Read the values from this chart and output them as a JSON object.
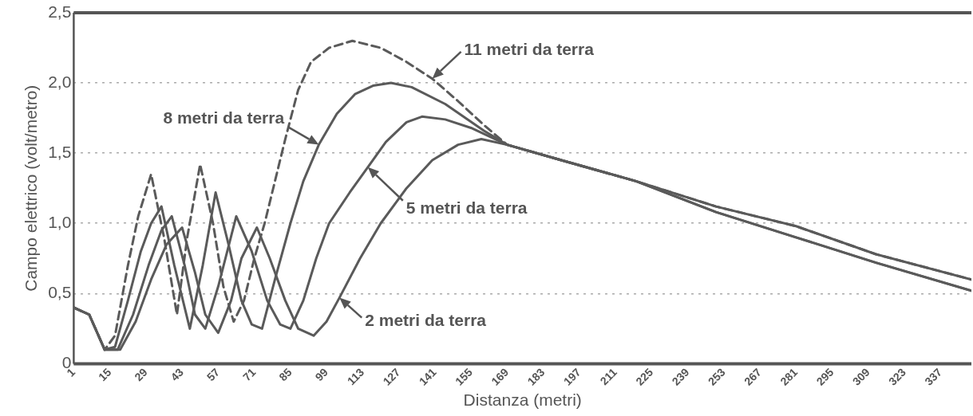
{
  "chart_data": {
    "type": "line",
    "xlabel": "Distanza (metri)",
    "ylabel": "Campo elettrico (volt/metro)",
    "xlim": [
      1,
      349
    ],
    "xticks": [
      1,
      15,
      29,
      43,
      57,
      71,
      85,
      99,
      113,
      127,
      141,
      155,
      169,
      183,
      197,
      211,
      225,
      239,
      253,
      267,
      281,
      295,
      309,
      323,
      337
    ],
    "ylim": [
      0,
      2.5
    ],
    "yticks": [
      0,
      {
        "value": 0.5,
        "label": "0,5"
      },
      {
        "value": 1,
        "label": "1,0"
      },
      {
        "value": 1.5,
        "label": "1,5"
      },
      {
        "value": 2,
        "label": "2,0"
      },
      {
        "value": 2.5,
        "label": "2,5"
      }
    ],
    "grid": "y",
    "legend": false,
    "marker": "none",
    "series": [
      {
        "color": "#5a5a5a",
        "line_style": "dashed",
        "x": [
          1,
          7,
          13,
          17,
          22,
          26,
          31,
          36,
          41,
          45,
          50,
          55,
          59,
          63,
          67,
          71,
          75,
          79,
          83,
          88,
          93,
          100,
          109,
          120,
          130,
          140,
          150,
          160,
          169,
          190,
          219,
          250,
          281,
          312,
          349
        ],
        "values": [
          0.4,
          0.35,
          0.1,
          0.2,
          0.7,
          1.05,
          1.35,
          0.9,
          0.35,
          0.9,
          1.42,
          1.0,
          0.55,
          0.3,
          0.45,
          0.75,
          1.0,
          1.3,
          1.6,
          1.95,
          2.15,
          2.25,
          2.3,
          2.25,
          2.15,
          2.03,
          1.87,
          1.7,
          1.56,
          1.45,
          1.3,
          1.12,
          0.98,
          0.78,
          0.6
        ]
      },
      {
        "color": "#5a5a5a",
        "line_style": "solid",
        "x": [
          1,
          7,
          13,
          17,
          22,
          27,
          31,
          35,
          40,
          46,
          51,
          56,
          61,
          66,
          70,
          74,
          79,
          85,
          90,
          96,
          103,
          110,
          117,
          124,
          132,
          145,
          160,
          169,
          190,
          219,
          250,
          281,
          312,
          349
        ],
        "values": [
          0.4,
          0.35,
          0.1,
          0.12,
          0.45,
          0.8,
          1.0,
          1.12,
          0.7,
          0.25,
          0.7,
          1.22,
          0.85,
          0.45,
          0.28,
          0.25,
          0.6,
          1.0,
          1.3,
          1.56,
          1.78,
          1.92,
          1.98,
          2.0,
          1.97,
          1.85,
          1.66,
          1.56,
          1.45,
          1.3,
          1.12,
          0.98,
          0.78,
          0.6
        ]
      },
      {
        "color": "#5a5a5a",
        "line_style": "solid",
        "x": [
          1,
          7,
          13,
          18,
          24,
          30,
          35,
          39,
          44,
          48,
          52,
          57,
          64,
          70,
          76,
          81,
          85,
          90,
          95,
          100,
          108,
          115,
          122,
          130,
          136,
          145,
          155,
          169,
          190,
          219,
          250,
          281,
          312,
          349
        ],
        "values": [
          0.4,
          0.35,
          0.1,
          0.1,
          0.35,
          0.7,
          0.95,
          1.05,
          0.7,
          0.35,
          0.25,
          0.55,
          1.05,
          0.8,
          0.45,
          0.28,
          0.25,
          0.45,
          0.75,
          1.0,
          1.22,
          1.4,
          1.58,
          1.72,
          1.76,
          1.74,
          1.68,
          1.56,
          1.45,
          1.3,
          1.08,
          0.9,
          0.72,
          0.52
        ]
      },
      {
        "color": "#5a5a5a",
        "line_style": "solid",
        "x": [
          1,
          7,
          13,
          19,
          25,
          31,
          37,
          43,
          48,
          52,
          57,
          62,
          66,
          72,
          77,
          83,
          88,
          94,
          99,
          104,
          112,
          120,
          130,
          140,
          150,
          159,
          169,
          190,
          219,
          250,
          281,
          312,
          349
        ],
        "values": [
          0.4,
          0.35,
          0.1,
          0.1,
          0.3,
          0.6,
          0.85,
          0.97,
          0.65,
          0.35,
          0.22,
          0.45,
          0.75,
          0.97,
          0.75,
          0.45,
          0.25,
          0.2,
          0.3,
          0.47,
          0.75,
          1.0,
          1.25,
          1.45,
          1.56,
          1.6,
          1.56,
          1.45,
          1.3,
          1.08,
          0.9,
          0.72,
          0.52
        ]
      }
    ],
    "annotations": [
      {
        "text": "11 metri da terra",
        "x": 140,
        "y": 2.03
      },
      {
        "text": "8 metri da terra",
        "x": 96,
        "y": 1.56
      },
      {
        "text": "5 metri da terra",
        "x": 115,
        "y": 1.4
      },
      {
        "text": "2 metri da terra",
        "x": 104,
        "y": 0.47
      }
    ]
  }
}
